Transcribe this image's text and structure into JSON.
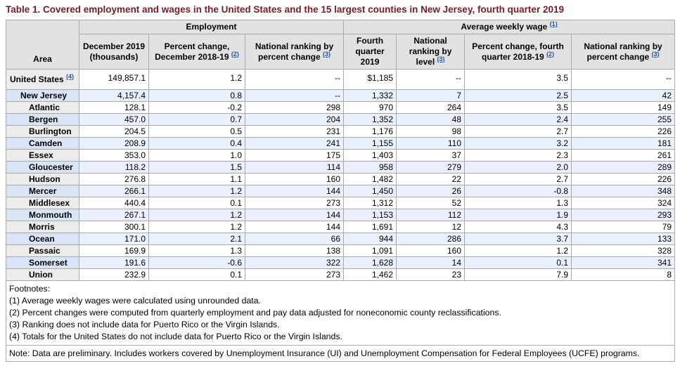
{
  "title": "Table 1. Covered employment and wages in the United States and the 15 largest counties in New Jersey, fourth quarter 2019",
  "colors": {
    "title_text": "#7d1a21",
    "footnote_link": "#2456a4",
    "header_bg": "#e2e2e2",
    "area_col_bg": "#ececec",
    "alt_row_bg": "#e9f0fc",
    "alt_area_bg": "#d9e5f7",
    "border": "#a9a9a9"
  },
  "chart_data": {
    "type": "table",
    "title": "Table 1. Covered employment and wages in the United States and the 15 largest counties in New Jersey, fourth quarter 2019",
    "area_header": "Area",
    "group_columns": [
      {
        "label": "Employment",
        "sup": "",
        "span": 3
      },
      {
        "label": "Average weekly wage",
        "sup": "(1)",
        "span": 4
      }
    ],
    "columns": [
      {
        "text": "December 2019 (thousands)",
        "sup": ""
      },
      {
        "text": "Percent change, December 2018-19",
        "sup": "(2)"
      },
      {
        "text": "National ranking by percent change",
        "sup": "(3)"
      },
      {
        "text": "Fourth quarter 2019",
        "sup": ""
      },
      {
        "text": "National ranking by level",
        "sup": "(3)"
      },
      {
        "text": "Percent change, fourth quarter 2018-19",
        "sup": "(2)"
      },
      {
        "text": "National ranking by percent change",
        "sup": "(3)"
      }
    ],
    "rows": [
      {
        "area": "United States",
        "sup": "(4)",
        "indent": 0,
        "highlight": false,
        "values": [
          "149,857.1",
          "1.2",
          "--",
          "$1,185",
          "--",
          "3.5",
          "--"
        ]
      },
      {
        "area": "New Jersey",
        "sup": "",
        "indent": 1,
        "highlight": true,
        "values": [
          "4,157.4",
          "0.8",
          "--",
          "1,332",
          "7",
          "2.5",
          "42"
        ]
      },
      {
        "area": "Atlantic",
        "sup": "",
        "indent": 2,
        "highlight": false,
        "values": [
          "128.1",
          "-0.2",
          "298",
          "970",
          "264",
          "3.5",
          "149"
        ]
      },
      {
        "area": "Bergen",
        "sup": "",
        "indent": 2,
        "highlight": true,
        "values": [
          "457.0",
          "0.7",
          "204",
          "1,352",
          "48",
          "2.4",
          "255"
        ]
      },
      {
        "area": "Burlington",
        "sup": "",
        "indent": 2,
        "highlight": false,
        "values": [
          "204.5",
          "0.5",
          "231",
          "1,176",
          "98",
          "2.7",
          "226"
        ]
      },
      {
        "area": "Camden",
        "sup": "",
        "indent": 2,
        "highlight": true,
        "values": [
          "208.9",
          "0.4",
          "241",
          "1,155",
          "110",
          "3.2",
          "181"
        ]
      },
      {
        "area": "Essex",
        "sup": "",
        "indent": 2,
        "highlight": false,
        "values": [
          "353.0",
          "1.0",
          "175",
          "1,403",
          "37",
          "2.3",
          "261"
        ]
      },
      {
        "area": "Gloucester",
        "sup": "",
        "indent": 2,
        "highlight": true,
        "values": [
          "118.2",
          "1.5",
          "114",
          "958",
          "279",
          "2.0",
          "289"
        ]
      },
      {
        "area": "Hudson",
        "sup": "",
        "indent": 2,
        "highlight": false,
        "values": [
          "276.8",
          "1.1",
          "160",
          "1,482",
          "22",
          "2.7",
          "226"
        ]
      },
      {
        "area": "Mercer",
        "sup": "",
        "indent": 2,
        "highlight": true,
        "values": [
          "266.1",
          "1.2",
          "144",
          "1,450",
          "26",
          "-0.8",
          "348"
        ]
      },
      {
        "area": "Middlesex",
        "sup": "",
        "indent": 2,
        "highlight": false,
        "values": [
          "440.4",
          "0.1",
          "273",
          "1,312",
          "52",
          "1.3",
          "324"
        ]
      },
      {
        "area": "Monmouth",
        "sup": "",
        "indent": 2,
        "highlight": true,
        "values": [
          "267.1",
          "1.2",
          "144",
          "1,153",
          "112",
          "1.9",
          "293"
        ]
      },
      {
        "area": "Morris",
        "sup": "",
        "indent": 2,
        "highlight": false,
        "values": [
          "300.1",
          "1.2",
          "144",
          "1,691",
          "12",
          "4.3",
          "79"
        ]
      },
      {
        "area": "Ocean",
        "sup": "",
        "indent": 2,
        "highlight": true,
        "values": [
          "171.0",
          "2.1",
          "66",
          "944",
          "286",
          "3.7",
          "133"
        ]
      },
      {
        "area": "Passaic",
        "sup": "",
        "indent": 2,
        "highlight": false,
        "values": [
          "169.9",
          "1.3",
          "138",
          "1,091",
          "160",
          "1.2",
          "328"
        ]
      },
      {
        "area": "Somerset",
        "sup": "",
        "indent": 2,
        "highlight": true,
        "values": [
          "191.6",
          "-0.6",
          "322",
          "1,628",
          "14",
          "0.1",
          "341"
        ]
      },
      {
        "area": "Union",
        "sup": "",
        "indent": 2,
        "highlight": false,
        "values": [
          "232.9",
          "0.1",
          "273",
          "1,462",
          "23",
          "7.9",
          "8"
        ]
      }
    ],
    "footnotes": [
      "Footnotes:",
      "(1) Average weekly wages were calculated using unrounded data.",
      "(2) Percent changes were computed from quarterly employment and pay data adjusted for noneconomic county reclassifications.",
      "(3) Ranking does not include data for Puerto Rico or the Virgin Islands.",
      "(4) Totals for the United States do not include data for Puerto Rico or the Virgin Islands."
    ],
    "note": "Note: Data are preliminary. Includes workers covered by Unemployment Insurance (UI) and Unemployment Compensation for Federal Employees (UCFE) programs."
  }
}
